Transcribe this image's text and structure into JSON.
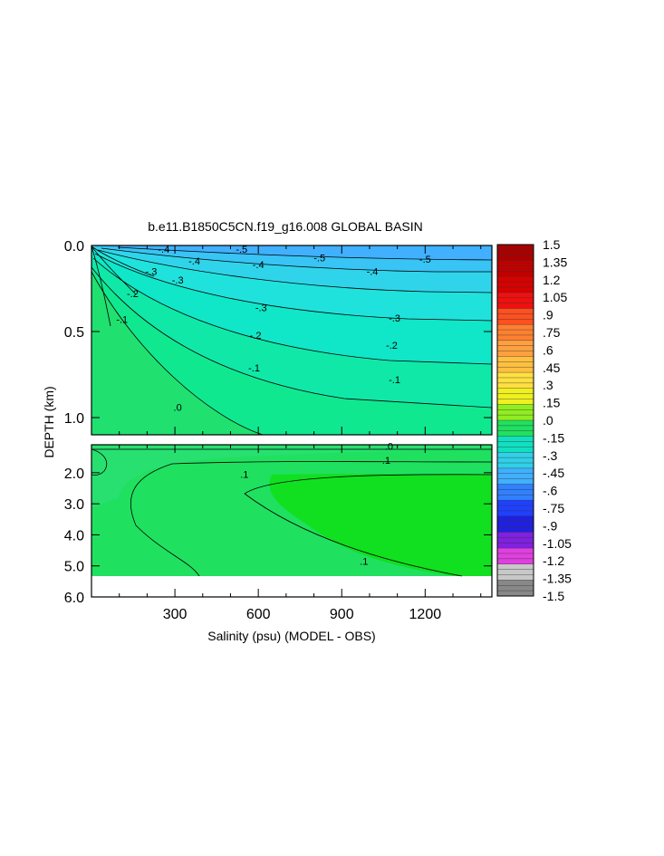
{
  "chart_data": {
    "type": "heatmap",
    "title": "b.e11.B1850C5CN.f19_g16.008 GLOBAL BASIN",
    "xlabel": "Salinity (psu) (MODEL - OBS)",
    "ylabel": "DEPTH (km)",
    "x_ticks": [
      {
        "value": 300,
        "label": "300"
      },
      {
        "value": 600,
        "label": "600"
      },
      {
        "value": 900,
        "label": "900"
      },
      {
        "value": 1200,
        "label": "1200"
      }
    ],
    "xlim": [
      0,
      1440
    ],
    "upper_panel": {
      "ylim": [
        0.0,
        1.1
      ],
      "y_ticks": [
        {
          "value": 0.0,
          "label": "0.0"
        },
        {
          "value": 0.5,
          "label": "0.5"
        },
        {
          "value": 1.0,
          "label": "1.0"
        }
      ]
    },
    "lower_panel": {
      "ylim": [
        1.1,
        6.0
      ],
      "y_ticks": [
        {
          "value": 2.0,
          "label": "2.0"
        },
        {
          "value": 3.0,
          "label": "3.0"
        },
        {
          "value": 4.0,
          "label": "4.0"
        },
        {
          "value": 5.0,
          "label": "5.0"
        },
        {
          "value": 6.0,
          "label": "6.0"
        }
      ],
      "data_bottom": 5.35
    },
    "contour_labels_upper": [
      {
        "x": 260,
        "y": 0.02,
        "label": "-.4"
      },
      {
        "x": 540,
        "y": 0.02,
        "label": "-.5"
      },
      {
        "x": 370,
        "y": 0.09,
        "label": "-.4"
      },
      {
        "x": 600,
        "y": 0.11,
        "label": "-.4"
      },
      {
        "x": 820,
        "y": 0.07,
        "label": "-.5"
      },
      {
        "x": 1200,
        "y": 0.08,
        "label": "-.5"
      },
      {
        "x": 215,
        "y": 0.15,
        "label": "-.3"
      },
      {
        "x": 310,
        "y": 0.2,
        "label": "-.3"
      },
      {
        "x": 1010,
        "y": 0.15,
        "label": "-.4"
      },
      {
        "x": 148,
        "y": 0.28,
        "label": "-.2"
      },
      {
        "x": 610,
        "y": 0.36,
        "label": "-.3"
      },
      {
        "x": 1090,
        "y": 0.42,
        "label": "-.3"
      },
      {
        "x": 110,
        "y": 0.43,
        "label": "-.1"
      },
      {
        "x": 590,
        "y": 0.52,
        "label": "-.2"
      },
      {
        "x": 1080,
        "y": 0.58,
        "label": "-.2"
      },
      {
        "x": 585,
        "y": 0.71,
        "label": "-.1"
      },
      {
        "x": 1090,
        "y": 0.78,
        "label": "-.1"
      },
      {
        "x": 310,
        "y": 0.94,
        "label": ".0"
      }
    ],
    "contour_labels_lower": [
      {
        "x": 1070,
        "y": 1.15,
        "label": ".0"
      },
      {
        "x": 1060,
        "y": 1.6,
        "label": ".1"
      },
      {
        "x": 550,
        "y": 2.05,
        "label": ".1"
      },
      {
        "x": 980,
        "y": 4.85,
        "label": ".1"
      }
    ],
    "colorbar": {
      "levels": [
        1.5,
        1.35,
        1.2,
        1.05,
        0.9,
        0.75,
        0.6,
        0.45,
        0.3,
        0.15,
        0.0,
        -0.15,
        -0.3,
        -0.45,
        -0.6,
        -0.75,
        -0.9,
        -1.05,
        -1.2,
        -1.35,
        -1.5
      ],
      "labels": [
        "1.5",
        "1.35",
        "1.2",
        "1.05",
        ".9",
        ".75",
        ".6",
        ".45",
        ".3",
        ".15",
        ".0",
        "-.15",
        "-.3",
        "-.45",
        "-.6",
        "-.75",
        "-.9",
        "-1.05",
        "-1.2",
        "-1.35",
        "-1.5"
      ],
      "colors": [
        "#aa0000",
        "#c00000",
        "#d80000",
        "#f01010",
        "#ff5020",
        "#ff8030",
        "#ffa040",
        "#ffc040",
        "#ffe040",
        "#eef020",
        "#90ee20",
        "#20e060",
        "#10e0c0",
        "#30d0e8",
        "#40b0ff",
        "#3080ff",
        "#2040ff",
        "#2020e0",
        "#8020e0",
        "#e040e0",
        "#c8c8c8",
        "#888888"
      ]
    }
  }
}
